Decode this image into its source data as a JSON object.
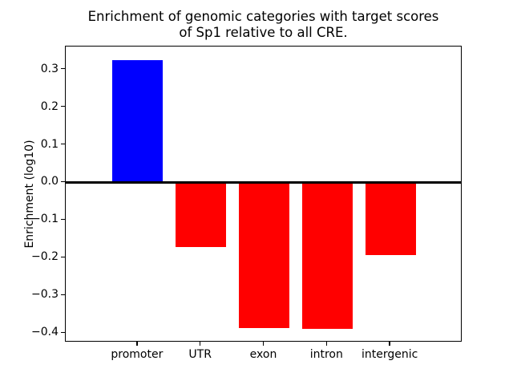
{
  "figure": {
    "background": "#ffffff",
    "text_color": "#000000",
    "axis_color": "#000000"
  },
  "chart_data": {
    "type": "bar",
    "title": "Enrichment of genomic categories with target scores\nof Sp1 relative to all CRE.",
    "ylabel": "Enrichment (log10)",
    "xlabel": "",
    "categories": [
      "promoter",
      "UTR",
      "exon",
      "intron",
      "intergenic"
    ],
    "values": [
      0.325,
      -0.171,
      -0.387,
      -0.389,
      -0.192
    ],
    "bar_colors": [
      "#0000ff",
      "#ff0000",
      "#ff0000",
      "#ff0000",
      "#ff0000"
    ],
    "positive_color": "#0000ff",
    "negative_color": "#ff0000",
    "ylim": [
      -0.425,
      0.361
    ],
    "yticks": [
      0.3,
      0.2,
      0.1,
      0.0,
      -0.1,
      -0.2,
      -0.3,
      -0.4
    ],
    "zero_line_value": 0.0,
    "grid": false,
    "legend": false
  }
}
